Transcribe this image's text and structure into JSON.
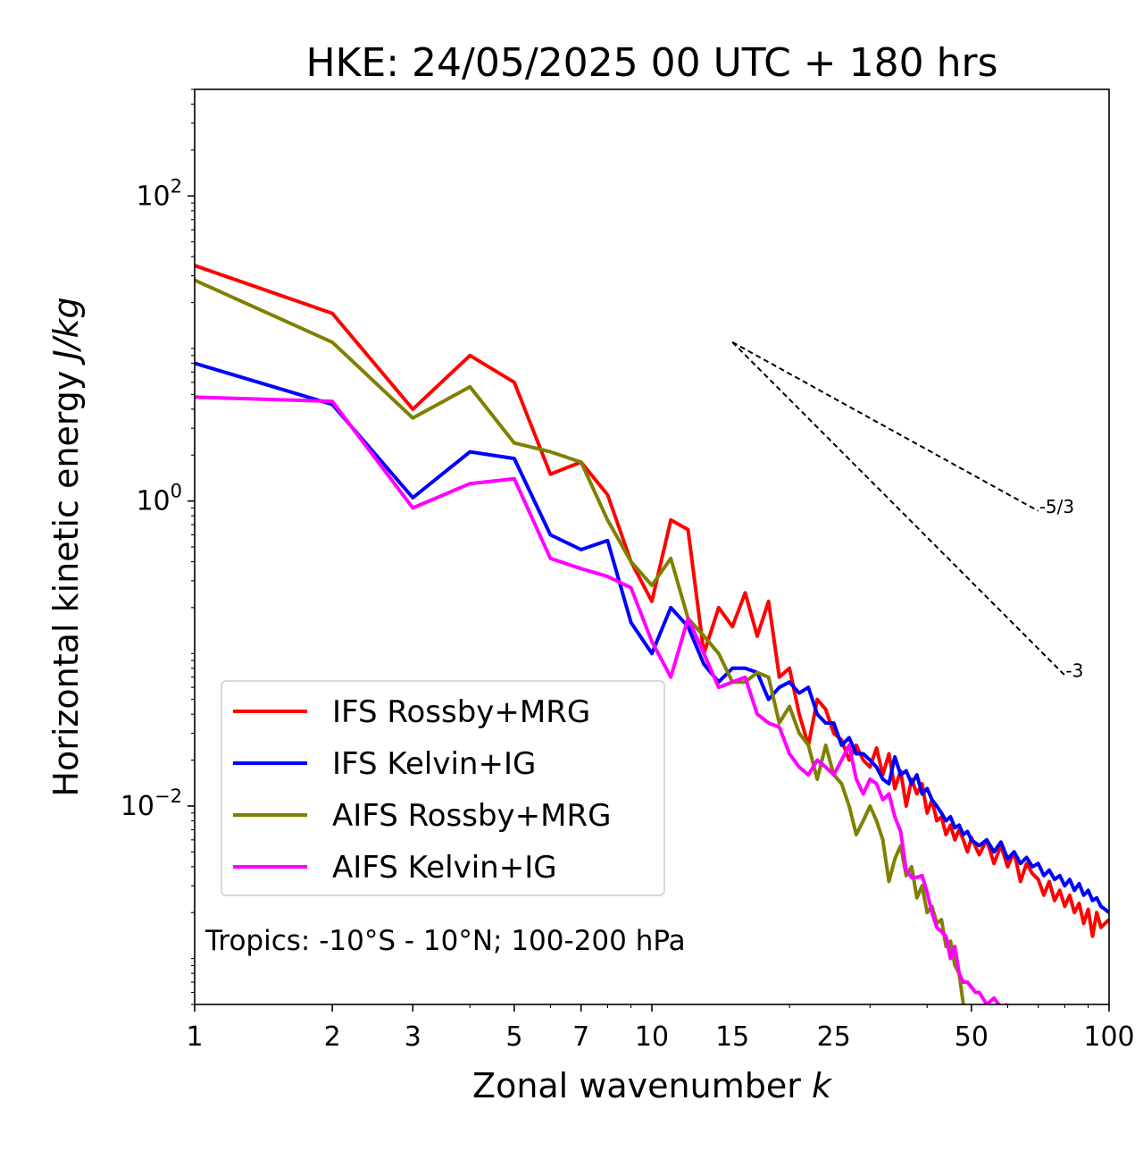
{
  "chart_data": {
    "type": "line",
    "title": "HKE: 24/05/2025 00 UTC + 180 hrs",
    "xlabel_main": "Zonal wavenumber ",
    "xlabel_var": "k",
    "ylabel_main": "Horizontal kinetic energy ",
    "ylabel_unit": "J/kg",
    "xscale": "log",
    "yscale": "log",
    "xlim": [
      1,
      100
    ],
    "ylim": [
      0.0005,
      500
    ],
    "x_ticks": [
      1,
      2,
      3,
      5,
      7,
      10,
      15,
      25,
      50,
      100
    ],
    "x_tick_labels": [
      "1",
      "2",
      "3",
      "5",
      "7",
      "10",
      "15",
      "25",
      "50",
      "100"
    ],
    "y_ticks": [
      {
        "value": 100,
        "base": "10",
        "exp": "2"
      },
      {
        "value": 1,
        "base": "10",
        "exp": "0"
      },
      {
        "value": 0.01,
        "base": "10",
        "exp": "−2"
      }
    ],
    "grid": false,
    "legend_position": "lower-left",
    "annotation": "Tropics: -10°S - 10°N; 100-200 hPa",
    "reference_lines": [
      {
        "label": "-5/3",
        "x": [
          15,
          70
        ],
        "y": [
          11,
          0.86
        ]
      },
      {
        "label": "-3",
        "x": [
          15,
          80
        ],
        "y": [
          11,
          0.072
        ]
      }
    ],
    "series": [
      {
        "name": "IFS Rossby+MRG",
        "color": "#ff0000",
        "x": [
          1,
          2,
          3,
          4,
          5,
          6,
          7,
          8,
          9,
          10,
          11,
          12,
          13,
          14,
          15,
          16,
          17,
          18,
          19,
          20,
          21,
          22,
          23,
          24,
          25,
          26,
          27,
          28,
          29,
          30,
          31,
          32,
          33,
          34,
          35,
          36,
          37,
          38,
          39,
          40,
          41,
          42,
          43,
          44,
          45,
          46,
          47,
          48,
          49,
          50,
          52,
          54,
          56,
          58,
          60,
          62,
          64,
          66,
          68,
          70,
          72,
          74,
          76,
          78,
          80,
          82,
          84,
          86,
          88,
          90,
          92,
          94,
          96,
          98,
          100
        ],
        "y": [
          35,
          17,
          4.0,
          9.0,
          6.0,
          1.5,
          1.8,
          1.1,
          0.4,
          0.22,
          0.75,
          0.65,
          0.1,
          0.2,
          0.15,
          0.25,
          0.13,
          0.22,
          0.07,
          0.08,
          0.04,
          0.025,
          0.05,
          0.043,
          0.03,
          0.027,
          0.02,
          0.025,
          0.02,
          0.018,
          0.024,
          0.016,
          0.022,
          0.013,
          0.017,
          0.01,
          0.015,
          0.012,
          0.014,
          0.009,
          0.011,
          0.008,
          0.0085,
          0.0065,
          0.0075,
          0.006,
          0.007,
          0.006,
          0.005,
          0.0062,
          0.0048,
          0.006,
          0.0042,
          0.0055,
          0.004,
          0.005,
          0.0032,
          0.0042,
          0.0036,
          0.0033,
          0.0026,
          0.0032,
          0.0024,
          0.0028,
          0.0022,
          0.0026,
          0.002,
          0.0023,
          0.0017,
          0.0021,
          0.0014,
          0.002,
          0.0016,
          0.0017,
          0.0018
        ]
      },
      {
        "name": "IFS Kelvin+IG",
        "color": "#0000ff",
        "x": [
          1,
          2,
          3,
          4,
          5,
          6,
          7,
          8,
          9,
          10,
          11,
          12,
          13,
          14,
          15,
          16,
          17,
          18,
          19,
          20,
          21,
          22,
          23,
          24,
          25,
          26,
          27,
          28,
          29,
          30,
          31,
          32,
          33,
          34,
          35,
          36,
          37,
          38,
          39,
          40,
          41,
          42,
          43,
          44,
          45,
          46,
          47,
          48,
          49,
          50,
          52,
          54,
          56,
          58,
          60,
          62,
          64,
          66,
          68,
          70,
          72,
          74,
          76,
          78,
          80,
          82,
          84,
          86,
          88,
          90,
          92,
          94,
          96,
          98,
          100
        ],
        "y": [
          8,
          4.3,
          1.05,
          2.1,
          1.9,
          0.6,
          0.48,
          0.55,
          0.16,
          0.1,
          0.2,
          0.15,
          0.085,
          0.065,
          0.08,
          0.08,
          0.075,
          0.05,
          0.06,
          0.065,
          0.055,
          0.06,
          0.04,
          0.035,
          0.035,
          0.025,
          0.028,
          0.022,
          0.022,
          0.02,
          0.018,
          0.015,
          0.014,
          0.021,
          0.016,
          0.017,
          0.014,
          0.016,
          0.012,
          0.013,
          0.011,
          0.01,
          0.009,
          0.008,
          0.0085,
          0.0072,
          0.0075,
          0.0065,
          0.0068,
          0.006,
          0.0055,
          0.006,
          0.005,
          0.0058,
          0.0045,
          0.005,
          0.0042,
          0.0046,
          0.004,
          0.0042,
          0.0035,
          0.0038,
          0.0033,
          0.0035,
          0.003,
          0.0033,
          0.0028,
          0.0031,
          0.0026,
          0.0028,
          0.0024,
          0.0025,
          0.0022,
          0.0021,
          0.002
        ]
      },
      {
        "name": "AIFS Rossby+MRG",
        "color": "#808000",
        "x": [
          1,
          2,
          3,
          4,
          5,
          6,
          7,
          8,
          9,
          10,
          11,
          12,
          13,
          14,
          15,
          16,
          17,
          18,
          19,
          20,
          21,
          22,
          23,
          24,
          25,
          26,
          27,
          28,
          29,
          30,
          31,
          32,
          33,
          34,
          35,
          36,
          37,
          38,
          39,
          40,
          41,
          42,
          43,
          44,
          45,
          46,
          47,
          48
        ],
        "y": [
          28,
          11,
          3.5,
          5.6,
          2.4,
          2.1,
          1.8,
          0.75,
          0.4,
          0.28,
          0.42,
          0.17,
          0.13,
          0.1,
          0.065,
          0.065,
          0.075,
          0.07,
          0.035,
          0.045,
          0.03,
          0.025,
          0.015,
          0.025,
          0.016,
          0.014,
          0.01,
          0.0065,
          0.008,
          0.01,
          0.008,
          0.006,
          0.0032,
          0.0045,
          0.0055,
          0.0035,
          0.004,
          0.0025,
          0.003,
          0.002,
          0.0022,
          0.0017,
          0.0018,
          0.0012,
          0.0013,
          0.0009,
          0.0008,
          0.0005
        ]
      },
      {
        "name": "AIFS Kelvin+IG",
        "color": "#ff00ff",
        "x": [
          1,
          2,
          3,
          4,
          5,
          6,
          7,
          8,
          9,
          10,
          11,
          12,
          13,
          14,
          15,
          16,
          17,
          18,
          19,
          20,
          21,
          22,
          23,
          24,
          25,
          26,
          27,
          28,
          29,
          30,
          31,
          32,
          33,
          34,
          35,
          36,
          37,
          38,
          39,
          40,
          41,
          42,
          43,
          44,
          45,
          46,
          47,
          48,
          49,
          50,
          51,
          52,
          54,
          56,
          58,
          60
        ],
        "y": [
          4.8,
          4.5,
          0.9,
          1.3,
          1.4,
          0.42,
          0.36,
          0.32,
          0.27,
          0.12,
          0.07,
          0.17,
          0.1,
          0.06,
          0.065,
          0.07,
          0.04,
          0.035,
          0.033,
          0.022,
          0.018,
          0.016,
          0.02,
          0.018,
          0.016,
          0.02,
          0.025,
          0.015,
          0.012,
          0.015,
          0.014,
          0.011,
          0.012,
          0.0085,
          0.0068,
          0.0038,
          0.0034,
          0.0034,
          0.0035,
          0.0027,
          0.002,
          0.0016,
          0.0015,
          0.0014,
          0.001,
          0.0012,
          0.0008,
          0.0007,
          0.0007,
          0.00065,
          0.0006,
          0.0006,
          0.0005,
          0.00055,
          0.00048,
          0.0005
        ]
      }
    ]
  }
}
